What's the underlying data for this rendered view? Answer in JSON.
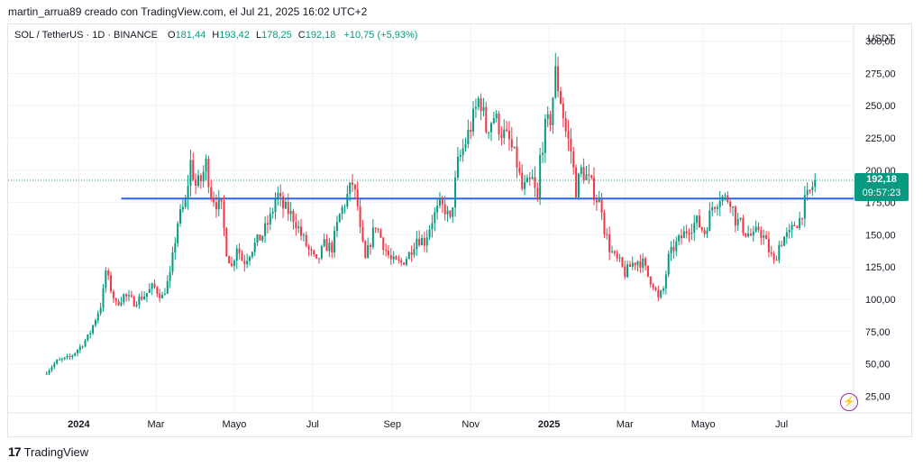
{
  "header": {
    "caption": "martin_arrua89 creado con TradingView.com, el Jul 21, 2025 16:02 UTC+2"
  },
  "legend": {
    "symbol": "SOL / TetherUS · 1D · BINANCE",
    "o_label": "O",
    "o_value": "181,44",
    "h_label": "H",
    "h_value": "193,42",
    "l_label": "L",
    "l_value": "178,25",
    "c_label": "C",
    "c_value": "192,18",
    "change": "+10,75 (+5,93%)"
  },
  "currency": "USDT",
  "price_badge": {
    "price": "192,18",
    "countdown": "09:57:23"
  },
  "footer": {
    "brand": "TradingView",
    "brand_mark": "17"
  },
  "colors": {
    "up": "#089981",
    "down": "#f23645",
    "line": "#2962ff",
    "accent": "#9c27b0"
  },
  "chart_data": {
    "type": "candlestick",
    "title": "SOL / TetherUS · 1D · BINANCE",
    "ylim": [
      12,
      313
    ],
    "y_ticks": [
      "300,00",
      "275,00",
      "250,00",
      "225,00",
      "200,00",
      "175,00",
      "150,00",
      "125,00",
      "100,00",
      "75,00",
      "50,00",
      "25,00"
    ],
    "y_tick_values": [
      300,
      275,
      250,
      225,
      200,
      175,
      150,
      125,
      100,
      75,
      50,
      25
    ],
    "x_ticks": [
      "2024",
      "Mar",
      "Mayo",
      "Jul",
      "Sep",
      "Nov",
      "2025",
      "Mar",
      "Mayo",
      "Jul"
    ],
    "x_tick_major": [
      true,
      false,
      false,
      false,
      false,
      false,
      true,
      false,
      false,
      false
    ],
    "x_tick_days": [
      27,
      87,
      148,
      209,
      271,
      332,
      393,
      452,
      513,
      574
    ],
    "date_range_days": [
      -28,
      630
    ],
    "horizontal_line": {
      "value": 178,
      "start_day": 60
    },
    "last_price": 192.18,
    "price_path": [
      [
        0,
        42
      ],
      [
        10,
        52
      ],
      [
        20,
        55
      ],
      [
        28,
        63
      ],
      [
        35,
        72
      ],
      [
        40,
        85
      ],
      [
        45,
        98
      ],
      [
        48,
        122
      ],
      [
        52,
        108
      ],
      [
        56,
        96
      ],
      [
        62,
        103
      ],
      [
        70,
        98
      ],
      [
        78,
        103
      ],
      [
        85,
        110
      ],
      [
        92,
        102
      ],
      [
        98,
        118
      ],
      [
        104,
        160
      ],
      [
        110,
        175
      ],
      [
        114,
        206
      ],
      [
        118,
        188
      ],
      [
        122,
        192
      ],
      [
        126,
        205
      ],
      [
        130,
        182
      ],
      [
        134,
        175
      ],
      [
        138,
        170
      ],
      [
        142,
        138
      ],
      [
        146,
        125
      ],
      [
        150,
        142
      ],
      [
        155,
        128
      ],
      [
        162,
        140
      ],
      [
        170,
        150
      ],
      [
        177,
        165
      ],
      [
        181,
        183
      ],
      [
        185,
        172
      ],
      [
        190,
        168
      ],
      [
        195,
        162
      ],
      [
        200,
        150
      ],
      [
        206,
        138
      ],
      [
        212,
        128
      ],
      [
        218,
        142
      ],
      [
        224,
        140
      ],
      [
        230,
        165
      ],
      [
        236,
        180
      ],
      [
        240,
        190
      ],
      [
        244,
        172
      ],
      [
        246,
        152
      ],
      [
        250,
        130
      ],
      [
        254,
        145
      ],
      [
        258,
        158
      ],
      [
        262,
        148
      ],
      [
        266,
        138
      ],
      [
        270,
        130
      ],
      [
        274,
        128
      ],
      [
        278,
        128
      ],
      [
        284,
        135
      ],
      [
        290,
        148
      ],
      [
        296,
        145
      ],
      [
        302,
        162
      ],
      [
        308,
        172
      ],
      [
        312,
        170
      ],
      [
        316,
        160
      ],
      [
        322,
        205
      ],
      [
        328,
        222
      ],
      [
        334,
        240
      ],
      [
        339,
        258
      ],
      [
        344,
        232
      ],
      [
        350,
        242
      ],
      [
        356,
        230
      ],
      [
        362,
        222
      ],
      [
        368,
        205
      ],
      [
        372,
        185
      ],
      [
        376,
        188
      ],
      [
        380,
        192
      ],
      [
        384,
        175
      ],
      [
        386,
        210
      ],
      [
        390,
        232
      ],
      [
        394,
        240
      ],
      [
        398,
        275
      ],
      [
        402,
        255
      ],
      [
        406,
        230
      ],
      [
        410,
        215
      ],
      [
        414,
        185
      ],
      [
        418,
        200
      ],
      [
        422,
        195
      ],
      [
        426,
        188
      ],
      [
        430,
        178
      ],
      [
        434,
        172
      ],
      [
        436,
        155
      ],
      [
        440,
        140
      ],
      [
        444,
        132
      ],
      [
        448,
        128
      ],
      [
        452,
        120
      ],
      [
        458,
        128
      ],
      [
        462,
        130
      ],
      [
        466,
        128
      ],
      [
        470,
        118
      ],
      [
        474,
        112
      ],
      [
        478,
        100
      ],
      [
        482,
        108
      ],
      [
        486,
        132
      ],
      [
        490,
        140
      ],
      [
        496,
        148
      ],
      [
        502,
        156
      ],
      [
        508,
        160
      ],
      [
        514,
        152
      ],
      [
        520,
        172
      ],
      [
        526,
        180
      ],
      [
        530,
        178
      ],
      [
        534,
        178
      ],
      [
        538,
        162
      ],
      [
        542,
        158
      ],
      [
        546,
        152
      ],
      [
        552,
        148
      ],
      [
        556,
        155
      ],
      [
        560,
        148
      ],
      [
        564,
        138
      ],
      [
        568,
        128
      ],
      [
        572,
        142
      ],
      [
        576,
        148
      ],
      [
        580,
        150
      ],
      [
        584,
        158
      ],
      [
        588,
        162
      ],
      [
        592,
        175
      ],
      [
        596,
        183
      ],
      [
        600,
        192
      ]
    ]
  }
}
